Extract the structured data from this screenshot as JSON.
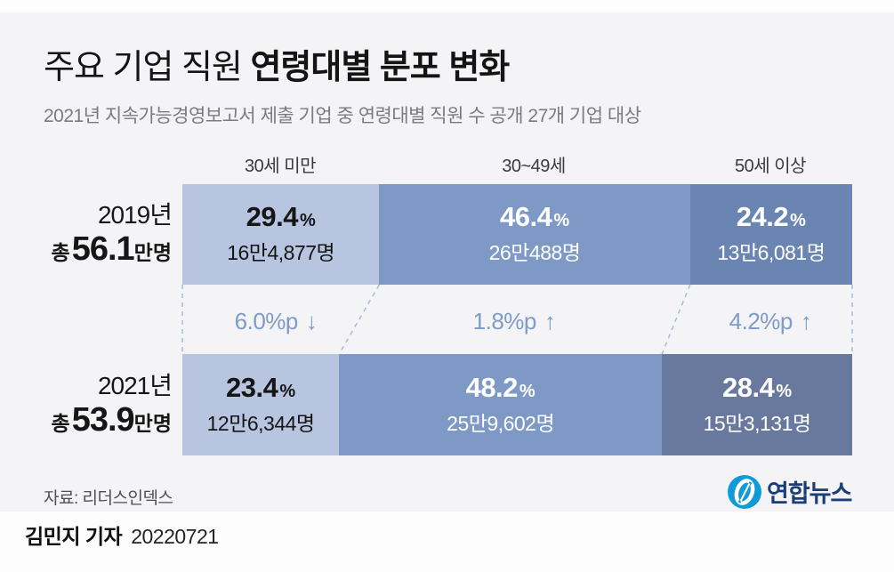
{
  "title": {
    "regular": "주요 기업 직원 ",
    "bold": "연령대별 분포 변화"
  },
  "subtitle": "2021년 지속가능경영보고서 제출 기업 중 연령대별 직원 수 공개 27개 기업 대상",
  "source": "자료: 리더스인덱스",
  "logo": {
    "text": "연합뉴스",
    "icon_color": "#0f9ad8",
    "text_color": "#1c3e78"
  },
  "footer": {
    "reporter": "김민지 기자",
    "date": "20220721"
  },
  "chart_data": {
    "type": "bar",
    "subtype": "stacked-horizontal-comparison",
    "pct_unit": "%",
    "categories": [
      "30세 미만",
      "30~49세",
      "50세 이상"
    ],
    "rows": [
      {
        "year": "2019년",
        "total_prefix": "총",
        "total_value": "56.1",
        "total_suffix": "만명",
        "seg_colors": [
          "#b7c5e0",
          "#7e99c6",
          "#6b85b2"
        ],
        "segments": [
          {
            "pct": 29.4,
            "pct_label": "29.4",
            "count": "16만4,877명",
            "text_color": "#151515"
          },
          {
            "pct": 46.4,
            "pct_label": "46.4",
            "count": "26만488명",
            "text_color": "#ffffff"
          },
          {
            "pct": 24.2,
            "pct_label": "24.2",
            "count": "13만6,081명",
            "text_color": "#ffffff"
          }
        ]
      },
      {
        "year": "2021년",
        "total_prefix": "총",
        "total_value": "53.9",
        "total_suffix": "만명",
        "seg_colors": [
          "#b7c5e0",
          "#7e99c6",
          "#69799e"
        ],
        "segments": [
          {
            "pct": 23.4,
            "pct_label": "23.4",
            "count": "12만6,344명",
            "text_color": "#151515"
          },
          {
            "pct": 48.2,
            "pct_label": "48.2",
            "count": "25만9,602명",
            "text_color": "#ffffff"
          },
          {
            "pct": 28.4,
            "pct_label": "28.4",
            "count": "15만3,131명",
            "text_color": "#ffffff"
          }
        ]
      }
    ],
    "changes": [
      {
        "label": "6.0%p",
        "arrow": "↓"
      },
      {
        "label": "1.8%p",
        "arrow": "↑"
      },
      {
        "label": "4.2%p",
        "arrow": "↑"
      }
    ],
    "connector_color": "#a6b9da",
    "legend_position": "none",
    "grid": false
  }
}
